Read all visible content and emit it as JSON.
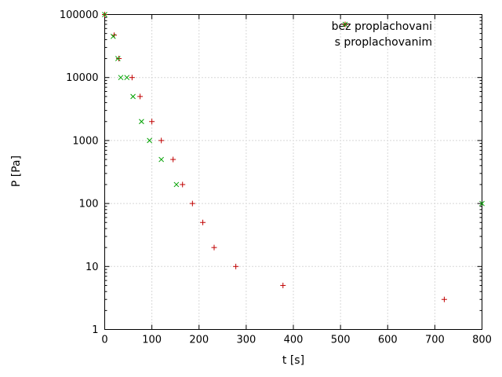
{
  "page": {
    "background": "#ffffff"
  },
  "chart_data": {
    "type": "scatter",
    "title": "",
    "xlabel": "t [s]",
    "ylabel": "P [Pa]",
    "x_axis": {
      "scale": "linear",
      "min": 0,
      "max": 800,
      "ticks": [
        0,
        100,
        200,
        300,
        400,
        500,
        600,
        700,
        800
      ]
    },
    "y_axis": {
      "scale": "log10",
      "min": 1,
      "max": 100000,
      "ticks": [
        1,
        10,
        100,
        1000,
        10000,
        100000
      ]
    },
    "grid": {
      "style": "dotted",
      "color": "#b0b0b0",
      "on": true
    },
    "legend": {
      "position": "top-right-inside"
    },
    "series": [
      {
        "name": "bez proplachovani",
        "marker": "plus",
        "color": "#c00000",
        "points": [
          [
            0,
            100000
          ],
          [
            20,
            47000
          ],
          [
            30,
            20000
          ],
          [
            58,
            10000
          ],
          [
            75,
            5000
          ],
          [
            100,
            2000
          ],
          [
            120,
            1000
          ],
          [
            145,
            500
          ],
          [
            165,
            200
          ],
          [
            186,
            100
          ],
          [
            208,
            50
          ],
          [
            232,
            20
          ],
          [
            278,
            10
          ],
          [
            378,
            5
          ],
          [
            720,
            3
          ]
        ]
      },
      {
        "name": "s proplachovanim",
        "marker": "cross",
        "color": "#00a000",
        "points": [
          [
            0,
            100000
          ],
          [
            18,
            45000
          ],
          [
            28,
            20000
          ],
          [
            34,
            10000
          ],
          [
            47,
            10000
          ],
          [
            60,
            5000
          ],
          [
            78,
            2000
          ],
          [
            95,
            1000
          ],
          [
            120,
            500
          ],
          [
            152,
            200
          ],
          [
            800,
            100
          ]
        ]
      }
    ]
  }
}
